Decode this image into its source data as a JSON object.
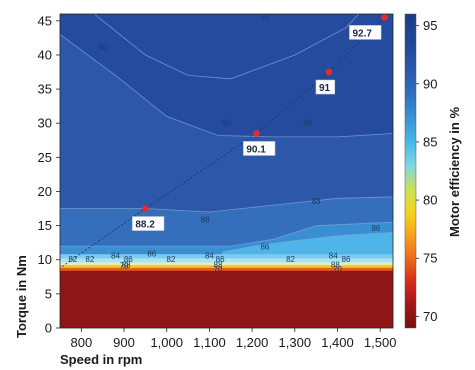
{
  "chart_data": {
    "type": "heatmap",
    "title": "",
    "xlabel": "Speed in rpm",
    "ylabel": "Torque in Nm",
    "colorbar_label": "Motor efficiency in %",
    "xlim": [
      750,
      1530
    ],
    "ylim": [
      0,
      46
    ],
    "x_ticks": [
      800,
      900,
      1000,
      1100,
      1200,
      1300,
      1400,
      1500
    ],
    "x_tick_labels": [
      "800",
      "900",
      "1,000",
      "1,100",
      "1,200",
      "1,300",
      "1,400",
      "1,500"
    ],
    "y_ticks": [
      0,
      5,
      10,
      15,
      20,
      25,
      30,
      35,
      40,
      45
    ],
    "y_tick_labels": [
      "0",
      "5",
      "10",
      "15",
      "20",
      "25",
      "30",
      "35",
      "40",
      "45"
    ],
    "colorbar_ticks": [
      70,
      75,
      80,
      85,
      90,
      95
    ],
    "colorbar_tick_labels": [
      "70",
      "75",
      "80",
      "85",
      "90",
      "95"
    ],
    "colorbar_range": [
      69,
      96
    ],
    "colorscale": [
      {
        "v": 69,
        "color": "#7a0e0e"
      },
      {
        "v": 71,
        "color": "#a31616"
      },
      {
        "v": 73,
        "color": "#d62a1a"
      },
      {
        "v": 75,
        "color": "#ee6a1b"
      },
      {
        "v": 77,
        "color": "#f7a21b"
      },
      {
        "v": 79,
        "color": "#f6d31c"
      },
      {
        "v": 81,
        "color": "#c8e25a"
      },
      {
        "v": 83,
        "color": "#7fd6e6"
      },
      {
        "v": 85,
        "color": "#45b7e8"
      },
      {
        "v": 87,
        "color": "#3894d6"
      },
      {
        "v": 89,
        "color": "#2f72bf"
      },
      {
        "v": 91,
        "color": "#2a5aad"
      },
      {
        "v": 93,
        "color": "#244a9c"
      },
      {
        "v": 96,
        "color": "#1a3a88"
      }
    ],
    "region_colors": {
      "below_threshold": "#8e1616",
      "threshold_band_1": "#e85d1c",
      "threshold_band_2": "#f6c21e",
      "threshold_band_3": "#e8efb0",
      "band_80_82": "#a9e4f4",
      "band_82_84": "#7fcbee",
      "band_84_86": "#4fb4e8",
      "band_86_88": "#3a8fd2",
      "band_88_90": "#356ebb",
      "band_90_92": "#2d57a8",
      "band_92_plus": "#254b9e",
      "contour_line": "#7fa6d8",
      "marker": "#e8282a"
    },
    "operating_line": {
      "points": [
        {
          "x": 950,
          "y": 17.5,
          "label": "88.2"
        },
        {
          "x": 1210,
          "y": 28.5,
          "label": "90.1"
        },
        {
          "x": 1380,
          "y": 37.5,
          "label": "91"
        },
        {
          "x": 1510,
          "y": 45.5,
          "label": "92.7"
        }
      ],
      "start": {
        "x": 755,
        "y": 9
      }
    },
    "contour_labels": [
      {
        "x": 780,
        "y": 10,
        "text": "82"
      },
      {
        "x": 820,
        "y": 10,
        "text": "82"
      },
      {
        "x": 880,
        "y": 10.5,
        "text": "84"
      },
      {
        "x": 910,
        "y": 10,
        "text": "86"
      },
      {
        "x": 905,
        "y": 9.2,
        "text": "88"
      },
      {
        "x": 965,
        "y": 10.8,
        "text": "86"
      },
      {
        "x": 1010,
        "y": 10,
        "text": "82"
      },
      {
        "x": 1100,
        "y": 10.5,
        "text": "84"
      },
      {
        "x": 1125,
        "y": 10,
        "text": "86"
      },
      {
        "x": 1120,
        "y": 9.2,
        "text": "88"
      },
      {
        "x": 1290,
        "y": 10,
        "text": "82"
      },
      {
        "x": 1390,
        "y": 10.5,
        "text": "84"
      },
      {
        "x": 1420,
        "y": 10,
        "text": "86"
      },
      {
        "x": 1395,
        "y": 9.2,
        "text": "88"
      },
      {
        "x": 900,
        "y": 9,
        "text": "70"
      },
      {
        "x": 1120,
        "y": 8.5,
        "text": "70"
      },
      {
        "x": 1400,
        "y": 8.5,
        "text": "70"
      },
      {
        "x": 1230,
        "y": 11.8,
        "text": "86"
      },
      {
        "x": 1490,
        "y": 14.5,
        "text": "86"
      },
      {
        "x": 1090,
        "y": 15.8,
        "text": "88"
      },
      {
        "x": 1350,
        "y": 18.5,
        "text": "88"
      },
      {
        "x": 1140,
        "y": 30,
        "text": "90"
      },
      {
        "x": 1330,
        "y": 30,
        "text": "90"
      },
      {
        "x": 850,
        "y": 41,
        "text": "90"
      },
      {
        "x": 1230,
        "y": 45.5,
        "text": "92"
      }
    ]
  }
}
